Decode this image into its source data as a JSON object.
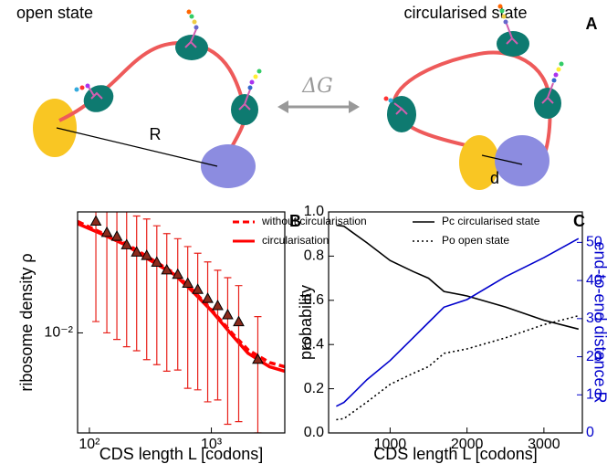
{
  "panel_a": {
    "label": "A",
    "open_label": "open state",
    "circ_label": "circularised state",
    "energy": "ΔG",
    "distance_open": "R",
    "distance_circ": "d"
  },
  "chart_data": [
    {
      "type": "scatter",
      "label": "B",
      "xlabel": "CDS length L  [codons]",
      "ylabel": "ribosome density ρ",
      "xlog": true,
      "ylog": true,
      "xlim": [
        80,
        4000
      ],
      "ylim": [
        0.002,
        0.07
      ],
      "xticks": [
        {
          "value": 100,
          "label": "10²"
        },
        {
          "value": 1000,
          "label": "10³"
        }
      ],
      "yticks": [
        {
          "value": 0.01,
          "label": "10⁻²"
        }
      ],
      "legend": "upper right",
      "points": {
        "color": "#8a2a1c",
        "edge": "#000000",
        "error_color": "#e8201a",
        "x": [
          113,
          139,
          168,
          202,
          244,
          295,
          357,
          431,
          530,
          640,
          773,
          933,
          1127,
          1361,
          1675,
          2404
        ],
        "values": [
          0.06,
          0.05,
          0.047,
          0.041,
          0.0365,
          0.0345,
          0.031,
          0.0274,
          0.0255,
          0.0221,
          0.02,
          0.0173,
          0.0154,
          0.0133,
          0.0119,
          0.0065
        ],
        "errors": [
          0.048,
          0.04,
          0.038,
          0.033,
          0.029,
          0.028,
          0.025,
          0.022,
          0.02,
          0.018,
          0.016,
          0.014,
          0.012,
          0.011,
          0.0095,
          0.0065
        ]
      },
      "series": [
        {
          "name": "without circularisation",
          "color": "#ff0000",
          "style": "dashed",
          "x": [
            80,
            120,
            200,
            300,
            500,
            700,
            1000,
            1500,
            2000,
            3000,
            4000
          ],
          "values": [
            0.06,
            0.051,
            0.042,
            0.034,
            0.026,
            0.02,
            0.0145,
            0.0098,
            0.0076,
            0.0062,
            0.0058
          ]
        },
        {
          "name": "circularisation",
          "color": "#ff0000",
          "style": "solid",
          "x": [
            80,
            120,
            200,
            300,
            500,
            700,
            1000,
            1500,
            2000,
            3000,
            4000
          ],
          "values": [
            0.058,
            0.05,
            0.041,
            0.033,
            0.0255,
            0.0195,
            0.0143,
            0.0095,
            0.0072,
            0.0058,
            0.0054
          ]
        }
      ]
    },
    {
      "type": "line",
      "label": "C",
      "xlabel": "CDS length L  [codons]",
      "ylabel": "probability",
      "y2label": "end-to-end distance R",
      "xlim": [
        200,
        3500
      ],
      "ylim": [
        0,
        1
      ],
      "y2lim": [
        0,
        58
      ],
      "xticks": [
        1000,
        2000,
        3000
      ],
      "yticks": [
        {
          "value": 0,
          "label": "0.0"
        },
        {
          "value": 0.2,
          "label": "0.2"
        },
        {
          "value": 0.4,
          "label": "0.4"
        },
        {
          "value": 0.6,
          "label": "0.6"
        },
        {
          "value": 0.8,
          "label": "0.8"
        },
        {
          "value": 1,
          "label": "1.0"
        }
      ],
      "y2ticks": [
        0,
        10,
        20,
        30,
        40,
        50
      ],
      "legend": "upper right",
      "x": [
        300,
        400,
        500,
        700,
        1000,
        1300,
        1500,
        1700,
        2000,
        2500,
        3000,
        3450
      ],
      "series": [
        {
          "name": "Pc circularised state",
          "color": "#000000",
          "style": "solid",
          "values": [
            0.94,
            0.935,
            0.91,
            0.86,
            0.78,
            0.73,
            0.7,
            0.64,
            0.62,
            0.57,
            0.51,
            0.47
          ]
        },
        {
          "name": "Po open state",
          "color": "#000000",
          "style": "dotted",
          "values": [
            0.06,
            0.065,
            0.09,
            0.14,
            0.22,
            0.27,
            0.3,
            0.36,
            0.38,
            0.43,
            0.49,
            0.53
          ]
        },
        {
          "color": "#0000cc",
          "style": "solid",
          "axis": "y2",
          "values": [
            7,
            8,
            10,
            14,
            19,
            25,
            29,
            33,
            35,
            41,
            46,
            51
          ]
        }
      ]
    }
  ]
}
